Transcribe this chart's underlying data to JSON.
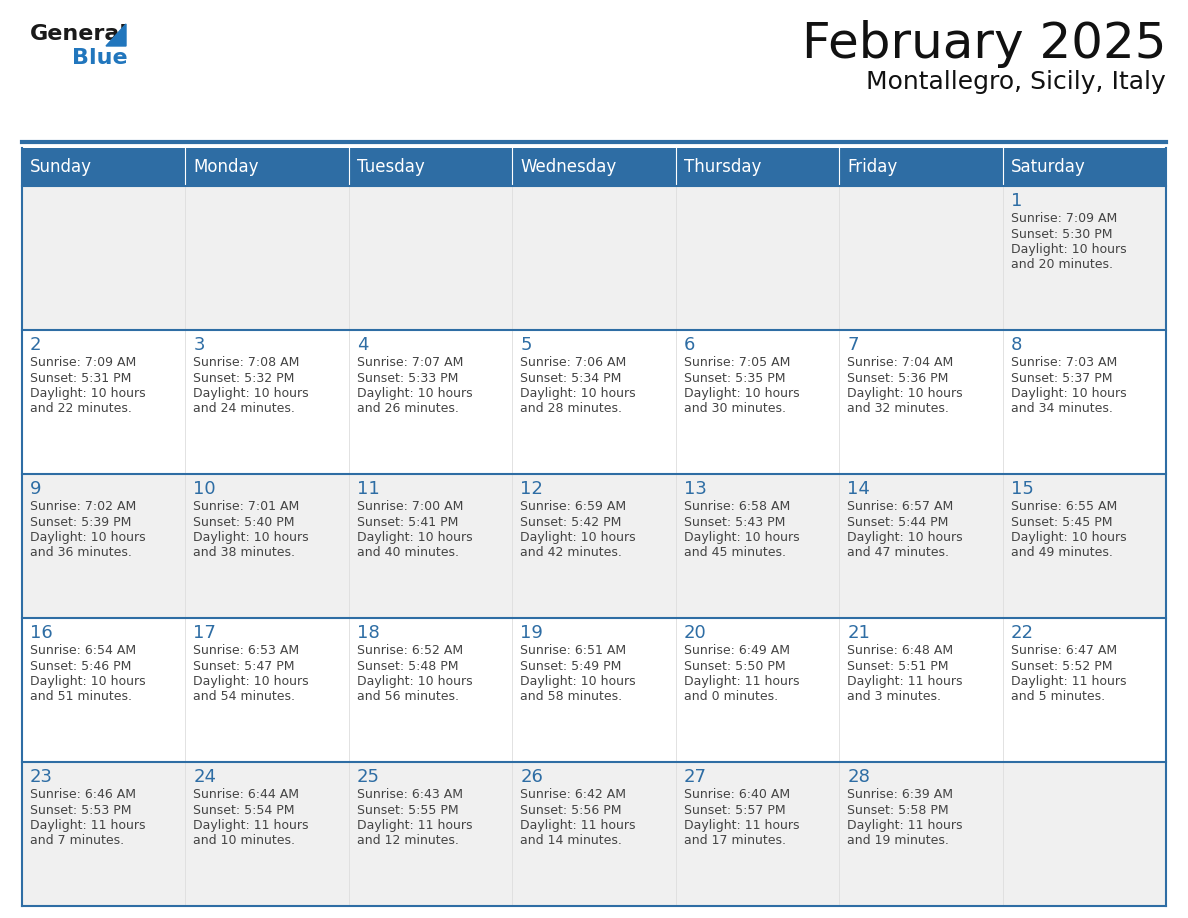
{
  "title": "February 2025",
  "subtitle": "Montallegro, Sicily, Italy",
  "header_bg": "#2E6DA4",
  "header_text_color": "#FFFFFF",
  "cell_bg_odd": "#F0F0F0",
  "cell_bg_even": "#FFFFFF",
  "day_number_color": "#2E6DA4",
  "info_text_color": "#444444",
  "border_color": "#2E6DA4",
  "sep_line_color": "#BBBBBB",
  "days_of_week": [
    "Sunday",
    "Monday",
    "Tuesday",
    "Wednesday",
    "Thursday",
    "Friday",
    "Saturday"
  ],
  "weeks": [
    [
      {
        "day": null,
        "sunrise": null,
        "sunset": null,
        "daylight": null
      },
      {
        "day": null,
        "sunrise": null,
        "sunset": null,
        "daylight": null
      },
      {
        "day": null,
        "sunrise": null,
        "sunset": null,
        "daylight": null
      },
      {
        "day": null,
        "sunrise": null,
        "sunset": null,
        "daylight": null
      },
      {
        "day": null,
        "sunrise": null,
        "sunset": null,
        "daylight": null
      },
      {
        "day": null,
        "sunrise": null,
        "sunset": null,
        "daylight": null
      },
      {
        "day": 1,
        "sunrise": "7:09 AM",
        "sunset": "5:30 PM",
        "daylight": "10 hours\nand 20 minutes."
      }
    ],
    [
      {
        "day": 2,
        "sunrise": "7:09 AM",
        "sunset": "5:31 PM",
        "daylight": "10 hours\nand 22 minutes."
      },
      {
        "day": 3,
        "sunrise": "7:08 AM",
        "sunset": "5:32 PM",
        "daylight": "10 hours\nand 24 minutes."
      },
      {
        "day": 4,
        "sunrise": "7:07 AM",
        "sunset": "5:33 PM",
        "daylight": "10 hours\nand 26 minutes."
      },
      {
        "day": 5,
        "sunrise": "7:06 AM",
        "sunset": "5:34 PM",
        "daylight": "10 hours\nand 28 minutes."
      },
      {
        "day": 6,
        "sunrise": "7:05 AM",
        "sunset": "5:35 PM",
        "daylight": "10 hours\nand 30 minutes."
      },
      {
        "day": 7,
        "sunrise": "7:04 AM",
        "sunset": "5:36 PM",
        "daylight": "10 hours\nand 32 minutes."
      },
      {
        "day": 8,
        "sunrise": "7:03 AM",
        "sunset": "5:37 PM",
        "daylight": "10 hours\nand 34 minutes."
      }
    ],
    [
      {
        "day": 9,
        "sunrise": "7:02 AM",
        "sunset": "5:39 PM",
        "daylight": "10 hours\nand 36 minutes."
      },
      {
        "day": 10,
        "sunrise": "7:01 AM",
        "sunset": "5:40 PM",
        "daylight": "10 hours\nand 38 minutes."
      },
      {
        "day": 11,
        "sunrise": "7:00 AM",
        "sunset": "5:41 PM",
        "daylight": "10 hours\nand 40 minutes."
      },
      {
        "day": 12,
        "sunrise": "6:59 AM",
        "sunset": "5:42 PM",
        "daylight": "10 hours\nand 42 minutes."
      },
      {
        "day": 13,
        "sunrise": "6:58 AM",
        "sunset": "5:43 PM",
        "daylight": "10 hours\nand 45 minutes."
      },
      {
        "day": 14,
        "sunrise": "6:57 AM",
        "sunset": "5:44 PM",
        "daylight": "10 hours\nand 47 minutes."
      },
      {
        "day": 15,
        "sunrise": "6:55 AM",
        "sunset": "5:45 PM",
        "daylight": "10 hours\nand 49 minutes."
      }
    ],
    [
      {
        "day": 16,
        "sunrise": "6:54 AM",
        "sunset": "5:46 PM",
        "daylight": "10 hours\nand 51 minutes."
      },
      {
        "day": 17,
        "sunrise": "6:53 AM",
        "sunset": "5:47 PM",
        "daylight": "10 hours\nand 54 minutes."
      },
      {
        "day": 18,
        "sunrise": "6:52 AM",
        "sunset": "5:48 PM",
        "daylight": "10 hours\nand 56 minutes."
      },
      {
        "day": 19,
        "sunrise": "6:51 AM",
        "sunset": "5:49 PM",
        "daylight": "10 hours\nand 58 minutes."
      },
      {
        "day": 20,
        "sunrise": "6:49 AM",
        "sunset": "5:50 PM",
        "daylight": "11 hours\nand 0 minutes."
      },
      {
        "day": 21,
        "sunrise": "6:48 AM",
        "sunset": "5:51 PM",
        "daylight": "11 hours\nand 3 minutes."
      },
      {
        "day": 22,
        "sunrise": "6:47 AM",
        "sunset": "5:52 PM",
        "daylight": "11 hours\nand 5 minutes."
      }
    ],
    [
      {
        "day": 23,
        "sunrise": "6:46 AM",
        "sunset": "5:53 PM",
        "daylight": "11 hours\nand 7 minutes."
      },
      {
        "day": 24,
        "sunrise": "6:44 AM",
        "sunset": "5:54 PM",
        "daylight": "11 hours\nand 10 minutes."
      },
      {
        "day": 25,
        "sunrise": "6:43 AM",
        "sunset": "5:55 PM",
        "daylight": "11 hours\nand 12 minutes."
      },
      {
        "day": 26,
        "sunrise": "6:42 AM",
        "sunset": "5:56 PM",
        "daylight": "11 hours\nand 14 minutes."
      },
      {
        "day": 27,
        "sunrise": "6:40 AM",
        "sunset": "5:57 PM",
        "daylight": "11 hours\nand 17 minutes."
      },
      {
        "day": 28,
        "sunrise": "6:39 AM",
        "sunset": "5:58 PM",
        "daylight": "11 hours\nand 19 minutes."
      },
      {
        "day": null,
        "sunrise": null,
        "sunset": null,
        "daylight": null
      }
    ]
  ],
  "logo_general_color": "#1a1a1a",
  "logo_blue_color": "#2176BD",
  "logo_triangle_color": "#2176BD",
  "title_fontsize": 36,
  "subtitle_fontsize": 18,
  "header_fontsize": 12,
  "day_num_fontsize": 13,
  "info_fontsize": 9
}
